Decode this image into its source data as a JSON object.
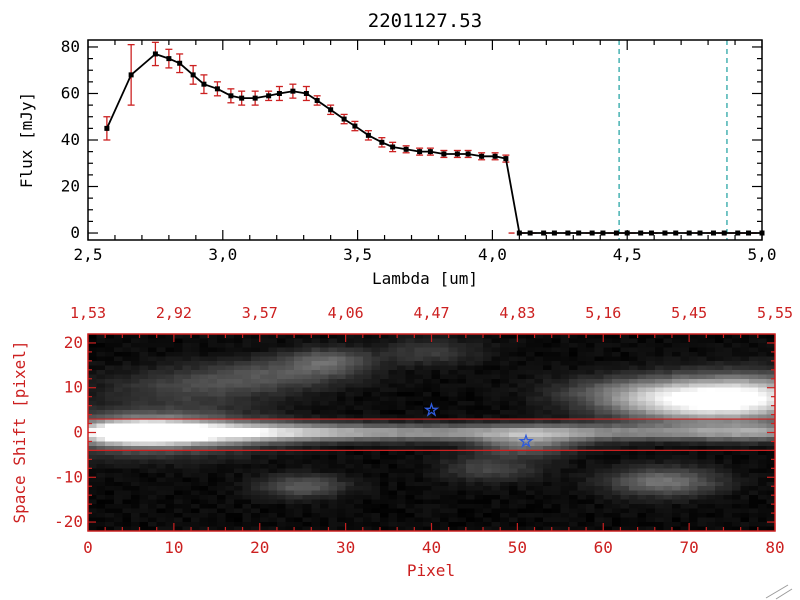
{
  "chart_data": [
    {
      "type": "line",
      "title": "2201127.53",
      "xlabel": "Lambda [um]",
      "ylabel": "Flux [mJy]",
      "xlim": [
        2.5,
        5.0
      ],
      "ylim": [
        0,
        80
      ],
      "xticks": [
        2.5,
        3.0,
        3.5,
        4.0,
        4.5,
        5.0
      ],
      "xtick_labels": [
        "2,5",
        "3,0",
        "3,5",
        "4,0",
        "4,5",
        "5,0"
      ],
      "yticks": [
        0,
        20,
        40,
        60,
        80
      ],
      "ytick_labels": [
        "0",
        "20",
        "40",
        "60",
        "80"
      ],
      "marker": "square",
      "line_color": "#000000",
      "marker_color": "#000000",
      "errorbar_color": "#cc2020",
      "series_x": [
        2.57,
        2.66,
        2.75,
        2.8,
        2.84,
        2.89,
        2.93,
        2.98,
        3.03,
        3.07,
        3.12,
        3.17,
        3.21,
        3.26,
        3.31,
        3.35,
        3.4,
        3.45,
        3.49,
        3.54,
        3.59,
        3.63,
        3.68,
        3.73,
        3.77,
        3.82,
        3.87,
        3.91,
        3.96,
        4.01,
        4.05,
        4.1,
        4.14,
        4.19,
        4.23,
        4.28,
        4.32,
        4.37,
        4.41,
        4.46,
        4.5,
        4.55,
        4.59,
        4.64,
        4.68,
        4.73,
        4.77,
        4.82,
        4.86,
        4.91,
        4.95,
        5.0
      ],
      "series_y": [
        45,
        68,
        77,
        75,
        73,
        68,
        64,
        62,
        59,
        58,
        58,
        59,
        60,
        61,
        60,
        57,
        53,
        49,
        46,
        42,
        39,
        37,
        36,
        35,
        35,
        34,
        34,
        34,
        33,
        33,
        32,
        0,
        0,
        0,
        0,
        0,
        0,
        0,
        0,
        0,
        0,
        0,
        0,
        0,
        0,
        0,
        0,
        0,
        0,
        0,
        0,
        0
      ],
      "series_yerr": [
        5,
        13,
        5,
        4,
        4,
        4,
        4,
        3,
        3,
        3,
        3,
        2,
        3,
        3,
        3,
        2,
        2,
        2,
        2,
        2,
        2,
        2,
        1.5,
        1.5,
        1.5,
        1.5,
        1.5,
        1.5,
        1.5,
        1.5,
        1.5,
        0,
        0,
        0,
        0,
        0,
        0,
        0,
        0,
        0,
        0,
        0,
        0,
        0,
        0,
        0,
        0,
        0,
        0,
        0,
        0,
        0
      ],
      "zero_line": {
        "y": 0,
        "x_start": 4.06,
        "x_end": 5.0,
        "color": "#cc2020",
        "style": "dashed"
      },
      "vlines": [
        4.47,
        4.87
      ],
      "vline_color": "#3aacac",
      "vline_style": "dashed",
      "grid": false
    },
    {
      "type": "heatmap",
      "xlabel": "Pixel",
      "ylabel": "Space Shift [pixel]",
      "axis_color": "#cc2020",
      "xlim": [
        0,
        80
      ],
      "ylim": [
        -20,
        20
      ],
      "xticks": [
        0,
        10,
        20,
        30,
        40,
        50,
        60,
        70,
        80
      ],
      "xtick_labels": [
        "0",
        "10",
        "20",
        "30",
        "40",
        "50",
        "60",
        "70",
        "80"
      ],
      "yticks": [
        20,
        10,
        0,
        -10,
        -20
      ],
      "ytick_labels": [
        "20",
        "10",
        "0",
        "-10",
        "-20"
      ],
      "top_axis_labels": [
        "1,53",
        "2,92",
        "3,57",
        "4,06",
        "4,47",
        "4,83",
        "5,16",
        "5,45",
        "5,55"
      ],
      "aperture_lines_y": [
        3,
        -4
      ],
      "aperture_color": "#cc2020",
      "stars": [
        {
          "x": 40,
          "y": 5
        },
        {
          "x": 51,
          "y": -2
        }
      ],
      "star_color": "#2f5bdc",
      "background": "#000000",
      "noise": 0.05,
      "blobs": [
        {
          "x": 6,
          "y": 0,
          "sx": 4,
          "sy": 1.6,
          "a": 1.0
        },
        {
          "x": 8,
          "y": 0,
          "sx": 8,
          "sy": 3.2,
          "a": 0.55
        },
        {
          "x": 14,
          "y": 0,
          "sx": 9,
          "sy": 1.5,
          "a": 0.55
        },
        {
          "x": 28,
          "y": 0,
          "sx": 14,
          "sy": 1.3,
          "a": 0.34
        },
        {
          "x": 45,
          "y": 0,
          "sx": 18,
          "sy": 1.25,
          "a": 0.27
        },
        {
          "x": 52,
          "y": -0.5,
          "sx": 5,
          "sy": 1.6,
          "a": 0.25
        },
        {
          "x": 68,
          "y": 0,
          "sx": 12,
          "sy": 1.2,
          "a": 0.26
        },
        {
          "x": 79,
          "y": 0,
          "sx": 6,
          "sy": 1.4,
          "a": 0.3
        },
        {
          "x": 70,
          "y": 7,
          "sx": 6.5,
          "sy": 3.2,
          "a": 0.8
        },
        {
          "x": 78,
          "y": 8,
          "sx": 6,
          "sy": 3.5,
          "a": 0.65
        },
        {
          "x": 62,
          "y": 9,
          "sx": 6,
          "sy": 2.5,
          "a": 0.2
        },
        {
          "x": 12,
          "y": 10,
          "sx": 7,
          "sy": 3.0,
          "a": 0.2
        },
        {
          "x": 22,
          "y": 13,
          "sx": 6,
          "sy": 2.5,
          "a": 0.22
        },
        {
          "x": 28,
          "y": 16,
          "sx": 3.5,
          "sy": 2.0,
          "a": 0.3
        },
        {
          "x": 40,
          "y": 18,
          "sx": 4,
          "sy": 2.0,
          "a": 0.18
        },
        {
          "x": 25,
          "y": -12,
          "sx": 3.5,
          "sy": 1.8,
          "a": 0.3
        },
        {
          "x": 47,
          "y": -8,
          "sx": 4,
          "sy": 2.0,
          "a": 0.22
        },
        {
          "x": 67,
          "y": -11,
          "sx": 4.5,
          "sy": 2.2,
          "a": 0.4
        },
        {
          "x": 51,
          "y": -3,
          "sx": 4,
          "sy": 1.6,
          "a": 0.3
        }
      ]
    }
  ]
}
